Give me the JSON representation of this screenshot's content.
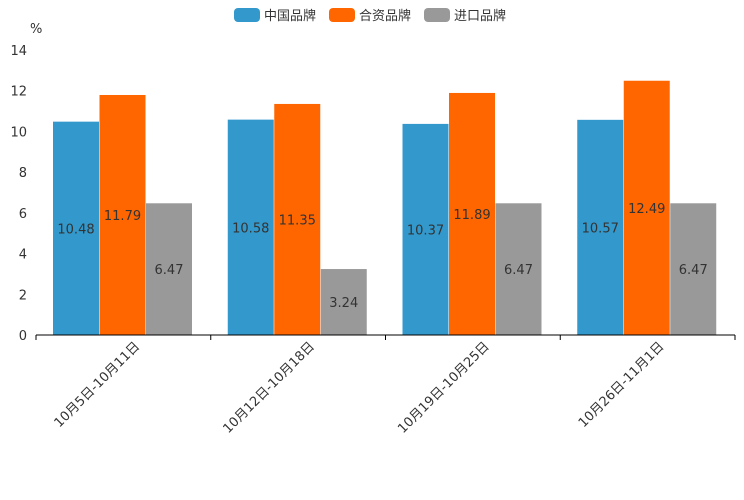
{
  "chart_data": {
    "type": "bar",
    "title": "",
    "xlabel": "",
    "ylabel": "%",
    "ylim": [
      0,
      14
    ],
    "yticks": [
      0,
      2,
      4,
      6,
      8,
      10,
      12,
      14
    ],
    "grid": false,
    "legend_position": "top-center",
    "categories": [
      "10月5日-10月11日",
      "10月12日-10月18日",
      "10月19日-10月25日",
      "10月26日-11月1日"
    ],
    "series": [
      {
        "name": "中国品牌",
        "color": "#3399cc",
        "values": [
          10.48,
          10.58,
          10.37,
          10.57
        ]
      },
      {
        "name": "合资品牌",
        "color": "#ff6600",
        "values": [
          11.79,
          11.35,
          11.89,
          12.49
        ]
      },
      {
        "name": "进口品牌",
        "color": "#999999",
        "values": [
          6.47,
          3.24,
          6.47,
          6.47
        ]
      }
    ]
  }
}
